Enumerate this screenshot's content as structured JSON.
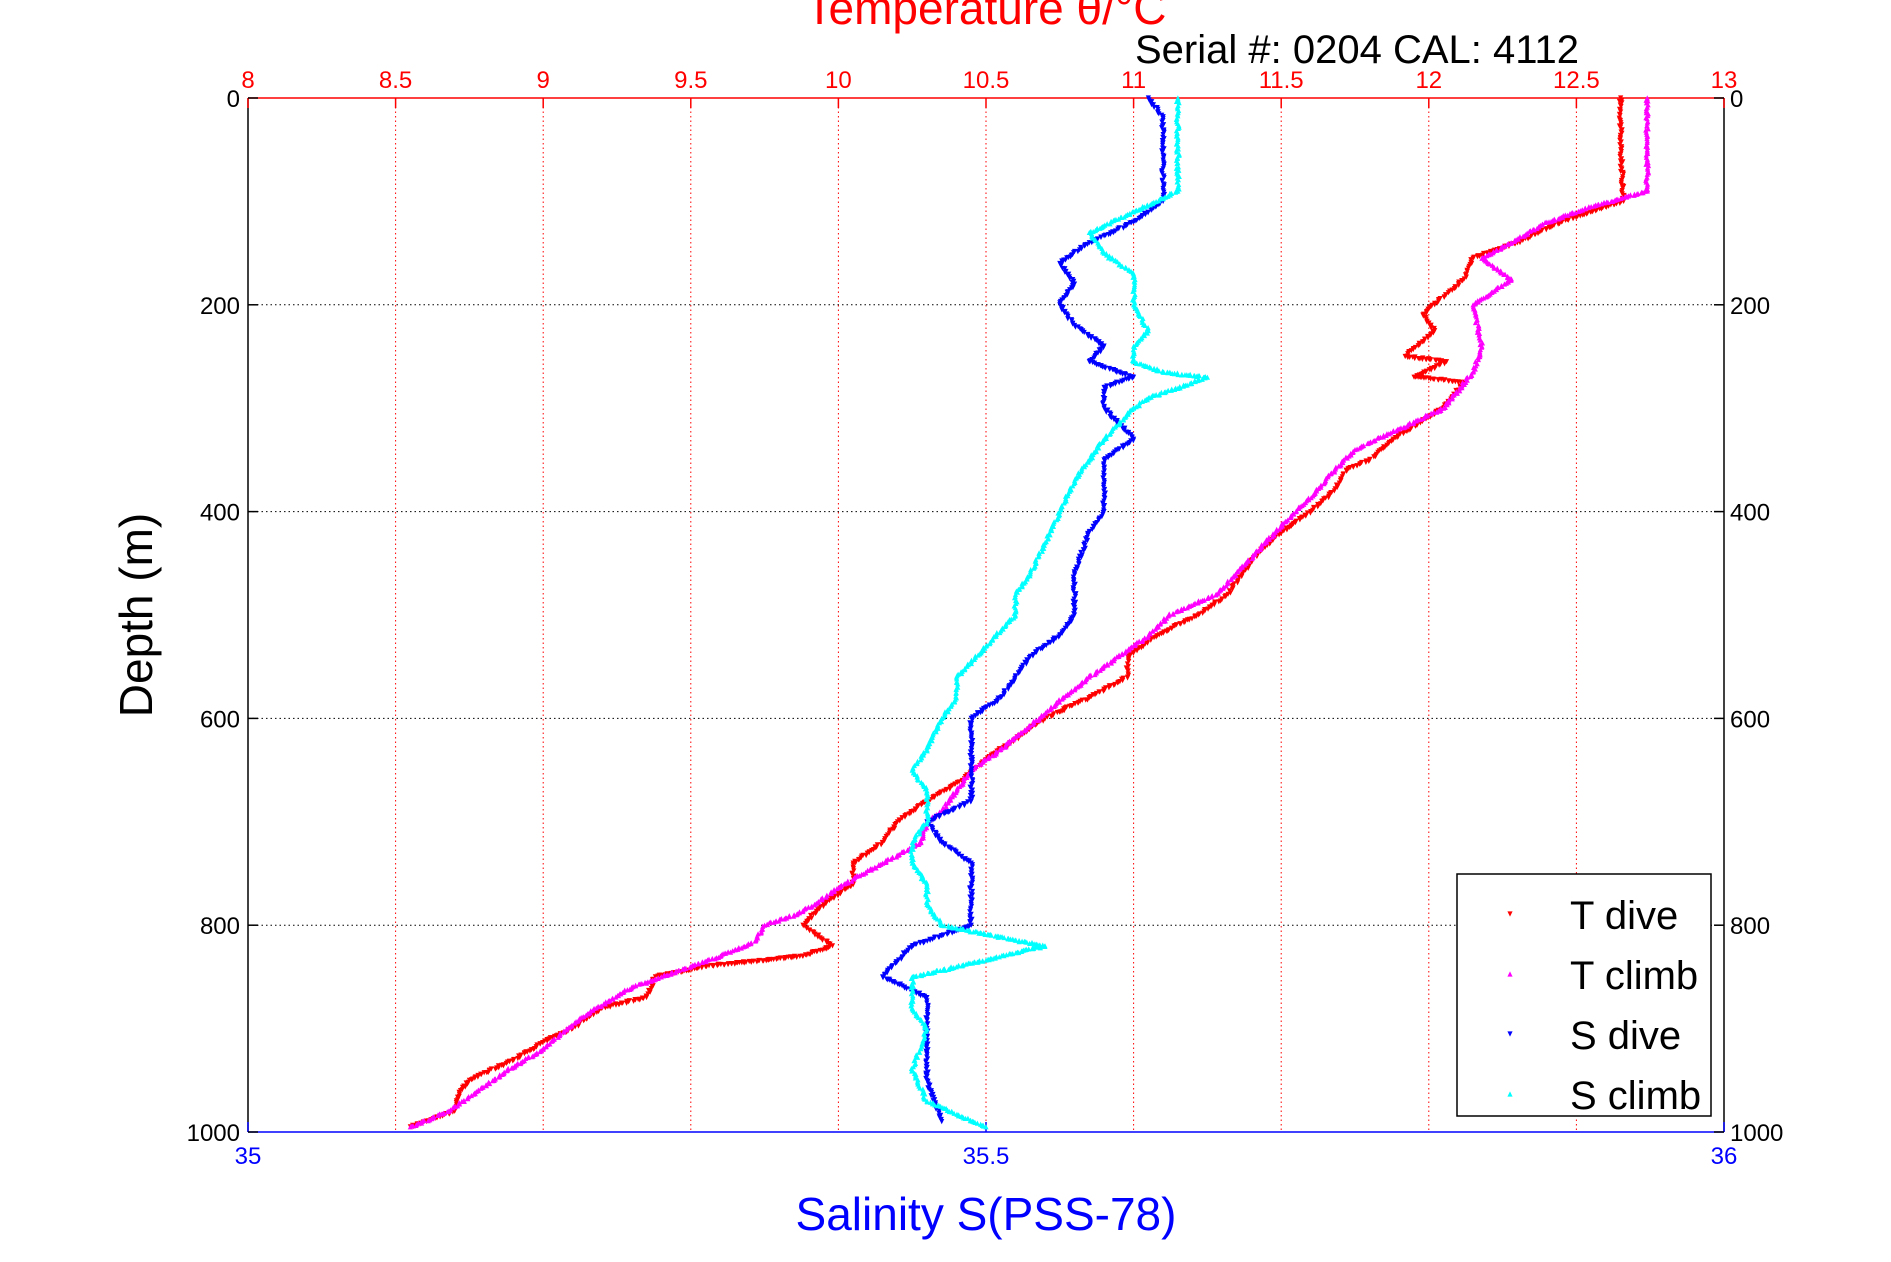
{
  "chart_data": {
    "type": "scatter",
    "title": "Temperature θ/°C",
    "subtitle": "Serial #: 0204  CAL: 4112",
    "xlabel_bottom": "Salinity S(PSS-78)",
    "xlabel_top": "Temperature θ/°C",
    "ylabel": "Depth (m)",
    "ylim": [
      1000,
      0
    ],
    "y_reversed": true,
    "xlim_top": [
      8,
      13
    ],
    "xlim_bottom": [
      35,
      36
    ],
    "top_ticks": [
      "8",
      "8.5",
      "9",
      "9.5",
      "10",
      "10.5",
      "11",
      "11.5",
      "12",
      "12.5",
      "13"
    ],
    "bottom_ticks": [
      "35",
      "35.5",
      "36"
    ],
    "y_ticks": [
      "0",
      "200",
      "400",
      "600",
      "800",
      "1000"
    ],
    "grid": true,
    "legend_position": "bottom-right",
    "colors": {
      "t_dive": "#ff0000",
      "t_climb": "#ff00ff",
      "s_dive": "#0000ff",
      "s_climb": "#00ffff",
      "top_axis": "#ff0000",
      "bottom_axis": "#0000ff"
    },
    "series": [
      {
        "name": "T dive",
        "axis": "top",
        "color": "#ff0000",
        "points": [
          [
            12.65,
            0
          ],
          [
            12.65,
            50
          ],
          [
            12.66,
            100
          ],
          [
            12.55,
            110
          ],
          [
            12.45,
            120
          ],
          [
            12.3,
            140
          ],
          [
            12.15,
            155
          ],
          [
            12.12,
            175
          ],
          [
            12.02,
            200
          ],
          [
            11.98,
            210
          ],
          [
            12.02,
            225
          ],
          [
            11.92,
            250
          ],
          [
            12.06,
            255
          ],
          [
            11.95,
            270
          ],
          [
            12.12,
            275
          ],
          [
            12.05,
            300
          ],
          [
            11.88,
            330
          ],
          [
            11.8,
            350
          ],
          [
            11.72,
            360
          ],
          [
            11.68,
            380
          ],
          [
            11.6,
            400
          ],
          [
            11.5,
            420
          ],
          [
            11.42,
            440
          ],
          [
            11.37,
            460
          ],
          [
            11.32,
            480
          ],
          [
            11.22,
            500
          ],
          [
            11.08,
            520
          ],
          [
            10.98,
            540
          ],
          [
            10.98,
            560
          ],
          [
            10.85,
            580
          ],
          [
            10.7,
            600
          ],
          [
            10.6,
            620
          ],
          [
            10.5,
            640
          ],
          [
            10.42,
            660
          ],
          [
            10.3,
            680
          ],
          [
            10.2,
            700
          ],
          [
            10.15,
            720
          ],
          [
            10.05,
            740
          ],
          [
            10.05,
            760
          ],
          [
            9.95,
            780
          ],
          [
            9.88,
            800
          ],
          [
            9.98,
            820
          ],
          [
            9.88,
            830
          ],
          [
            9.55,
            840
          ],
          [
            9.38,
            850
          ],
          [
            9.35,
            870
          ],
          [
            9.2,
            880
          ],
          [
            9.1,
            900
          ],
          [
            9.02,
            910
          ],
          [
            8.9,
            930
          ],
          [
            8.75,
            950
          ],
          [
            8.72,
            960
          ],
          [
            8.7,
            980
          ],
          [
            8.55,
            995
          ]
        ]
      },
      {
        "name": "T climb",
        "axis": "top",
        "color": "#ff00ff",
        "points": [
          [
            12.74,
            0
          ],
          [
            12.74,
            50
          ],
          [
            12.74,
            90
          ],
          [
            12.55,
            105
          ],
          [
            12.4,
            120
          ],
          [
            12.28,
            140
          ],
          [
            12.18,
            155
          ],
          [
            12.28,
            175
          ],
          [
            12.15,
            200
          ],
          [
            12.18,
            240
          ],
          [
            12.15,
            265
          ],
          [
            12.05,
            300
          ],
          [
            11.9,
            320
          ],
          [
            11.75,
            340
          ],
          [
            11.68,
            360
          ],
          [
            11.62,
            380
          ],
          [
            11.55,
            400
          ],
          [
            11.48,
            420
          ],
          [
            11.38,
            450
          ],
          [
            11.28,
            480
          ],
          [
            11.12,
            500
          ],
          [
            11.05,
            520
          ],
          [
            10.95,
            540
          ],
          [
            10.85,
            560
          ],
          [
            10.76,
            580
          ],
          [
            10.68,
            600
          ],
          [
            10.55,
            630
          ],
          [
            10.45,
            650
          ],
          [
            10.4,
            670
          ],
          [
            10.35,
            690
          ],
          [
            10.3,
            700
          ],
          [
            10.28,
            720
          ],
          [
            10.15,
            740
          ],
          [
            10.02,
            760
          ],
          [
            9.92,
            780
          ],
          [
            9.85,
            790
          ],
          [
            9.75,
            800
          ],
          [
            9.72,
            815
          ],
          [
            9.6,
            830
          ],
          [
            9.5,
            840
          ],
          [
            9.4,
            850
          ],
          [
            9.3,
            860
          ],
          [
            9.18,
            880
          ],
          [
            9.08,
            900
          ],
          [
            9.0,
            920
          ],
          [
            8.88,
            940
          ],
          [
            8.78,
            960
          ],
          [
            8.68,
            980
          ],
          [
            8.55,
            995
          ]
        ]
      },
      {
        "name": "S dive",
        "axis": "bottom",
        "color": "#0000ff",
        "points": [
          [
            35.61,
            0
          ],
          [
            35.62,
            20
          ],
          [
            35.62,
            60
          ],
          [
            35.62,
            100
          ],
          [
            35.6,
            120
          ],
          [
            35.57,
            140
          ],
          [
            35.55,
            160
          ],
          [
            35.56,
            180
          ],
          [
            35.55,
            200
          ],
          [
            35.56,
            220
          ],
          [
            35.58,
            240
          ],
          [
            35.57,
            255
          ],
          [
            35.6,
            270
          ],
          [
            35.58,
            280
          ],
          [
            35.58,
            300
          ],
          [
            35.6,
            330
          ],
          [
            35.58,
            350
          ],
          [
            35.58,
            370
          ],
          [
            35.58,
            400
          ],
          [
            35.57,
            420
          ],
          [
            35.56,
            460
          ],
          [
            35.56,
            500
          ],
          [
            35.55,
            520
          ],
          [
            35.53,
            540
          ],
          [
            35.52,
            560
          ],
          [
            35.51,
            580
          ],
          [
            35.49,
            600
          ],
          [
            35.49,
            620
          ],
          [
            35.49,
            650
          ],
          [
            35.49,
            680
          ],
          [
            35.46,
            700
          ],
          [
            35.47,
            720
          ],
          [
            35.49,
            740
          ],
          [
            35.49,
            760
          ],
          [
            35.49,
            780
          ],
          [
            35.49,
            800
          ],
          [
            35.45,
            820
          ],
          [
            35.43,
            850
          ],
          [
            35.46,
            870
          ],
          [
            35.46,
            900
          ],
          [
            35.46,
            950
          ],
          [
            35.47,
            990
          ]
        ]
      },
      {
        "name": "S climb",
        "axis": "bottom",
        "color": "#00ffff",
        "points": [
          [
            35.63,
            0
          ],
          [
            35.63,
            40
          ],
          [
            35.63,
            90
          ],
          [
            35.6,
            110
          ],
          [
            35.57,
            130
          ],
          [
            35.58,
            150
          ],
          [
            35.6,
            170
          ],
          [
            35.6,
            200
          ],
          [
            35.61,
            225
          ],
          [
            35.6,
            240
          ],
          [
            35.6,
            255
          ],
          [
            35.62,
            265
          ],
          [
            35.65,
            270
          ],
          [
            35.61,
            290
          ],
          [
            35.6,
            300
          ],
          [
            35.58,
            330
          ],
          [
            35.57,
            350
          ],
          [
            35.56,
            370
          ],
          [
            35.55,
            400
          ],
          [
            35.54,
            430
          ],
          [
            35.53,
            460
          ],
          [
            35.52,
            480
          ],
          [
            35.52,
            500
          ],
          [
            35.5,
            530
          ],
          [
            35.48,
            560
          ],
          [
            35.48,
            580
          ],
          [
            35.47,
            600
          ],
          [
            35.46,
            630
          ],
          [
            35.45,
            650
          ],
          [
            35.46,
            670
          ],
          [
            35.46,
            700
          ],
          [
            35.45,
            720
          ],
          [
            35.45,
            740
          ],
          [
            35.46,
            760
          ],
          [
            35.46,
            780
          ],
          [
            35.47,
            800
          ],
          [
            35.54,
            820
          ],
          [
            35.45,
            850
          ],
          [
            35.45,
            880
          ],
          [
            35.46,
            900
          ],
          [
            35.45,
            940
          ],
          [
            35.46,
            970
          ],
          [
            35.5,
            995
          ]
        ]
      }
    ]
  }
}
